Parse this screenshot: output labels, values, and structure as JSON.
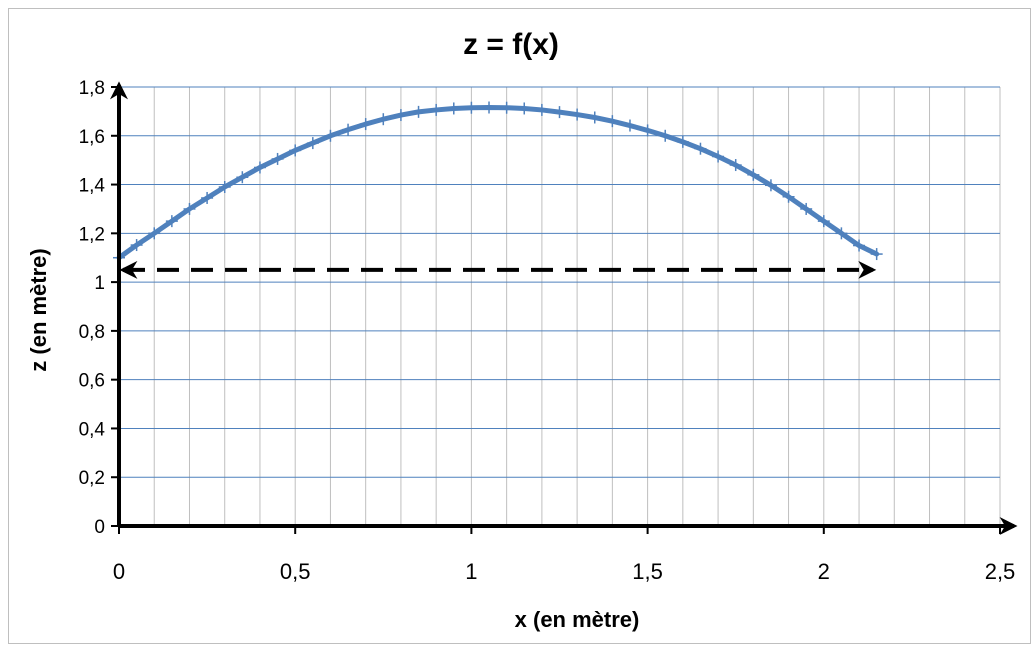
{
  "chart_data": {
    "type": "line",
    "title": "z = f(x)",
    "xlabel": "x (en mètre)",
    "ylabel": "z (en mètre)",
    "xlim": [
      0,
      2.5
    ],
    "ylim": [
      0,
      1.8
    ],
    "x_ticks": [
      0,
      0.5,
      1,
      1.5,
      2,
      2.5
    ],
    "x_tick_labels": [
      "0",
      "0,5",
      "1",
      "1,5",
      "2",
      "2,5"
    ],
    "y_ticks": [
      0,
      0.2,
      0.4,
      0.6,
      0.8,
      1,
      1.2,
      1.4,
      1.6,
      1.8
    ],
    "y_tick_labels": [
      "0",
      "0,2",
      "0,4",
      "0,6",
      "0,8",
      "1",
      "1,2",
      "1,4",
      "1,6",
      "1,8"
    ],
    "grid": true,
    "minor_x_step": 0.1,
    "series": [
      {
        "color": "#4f81bd",
        "marker": "plus",
        "x": [
          0,
          0.05,
          0.1,
          0.15,
          0.2,
          0.25,
          0.3,
          0.35,
          0.4,
          0.45,
          0.5,
          0.55,
          0.6,
          0.65,
          0.7,
          0.75,
          0.8,
          0.85,
          0.9,
          0.95,
          1.0,
          1.05,
          1.1,
          1.15,
          1.2,
          1.25,
          1.3,
          1.35,
          1.4,
          1.45,
          1.5,
          1.55,
          1.6,
          1.65,
          1.7,
          1.75,
          1.8,
          1.85,
          1.9,
          1.95,
          2.0,
          2.05,
          2.1,
          2.15
        ],
        "y": [
          1.1,
          1.152,
          1.2,
          1.25,
          1.3,
          1.345,
          1.39,
          1.43,
          1.47,
          1.505,
          1.54,
          1.57,
          1.6,
          1.625,
          1.648,
          1.668,
          1.685,
          1.698,
          1.706,
          1.712,
          1.715,
          1.716,
          1.715,
          1.712,
          1.706,
          1.697,
          1.687,
          1.675,
          1.66,
          1.642,
          1.622,
          1.6,
          1.575,
          1.547,
          1.515,
          1.48,
          1.44,
          1.397,
          1.35,
          1.3,
          1.25,
          1.2,
          1.15,
          1.115
        ]
      }
    ],
    "annotation": {
      "type": "double-arrow-dashed",
      "y": 1.05,
      "x_start": 0,
      "x_end": 2.15,
      "color": "#000000"
    },
    "axis_arrows": true
  }
}
